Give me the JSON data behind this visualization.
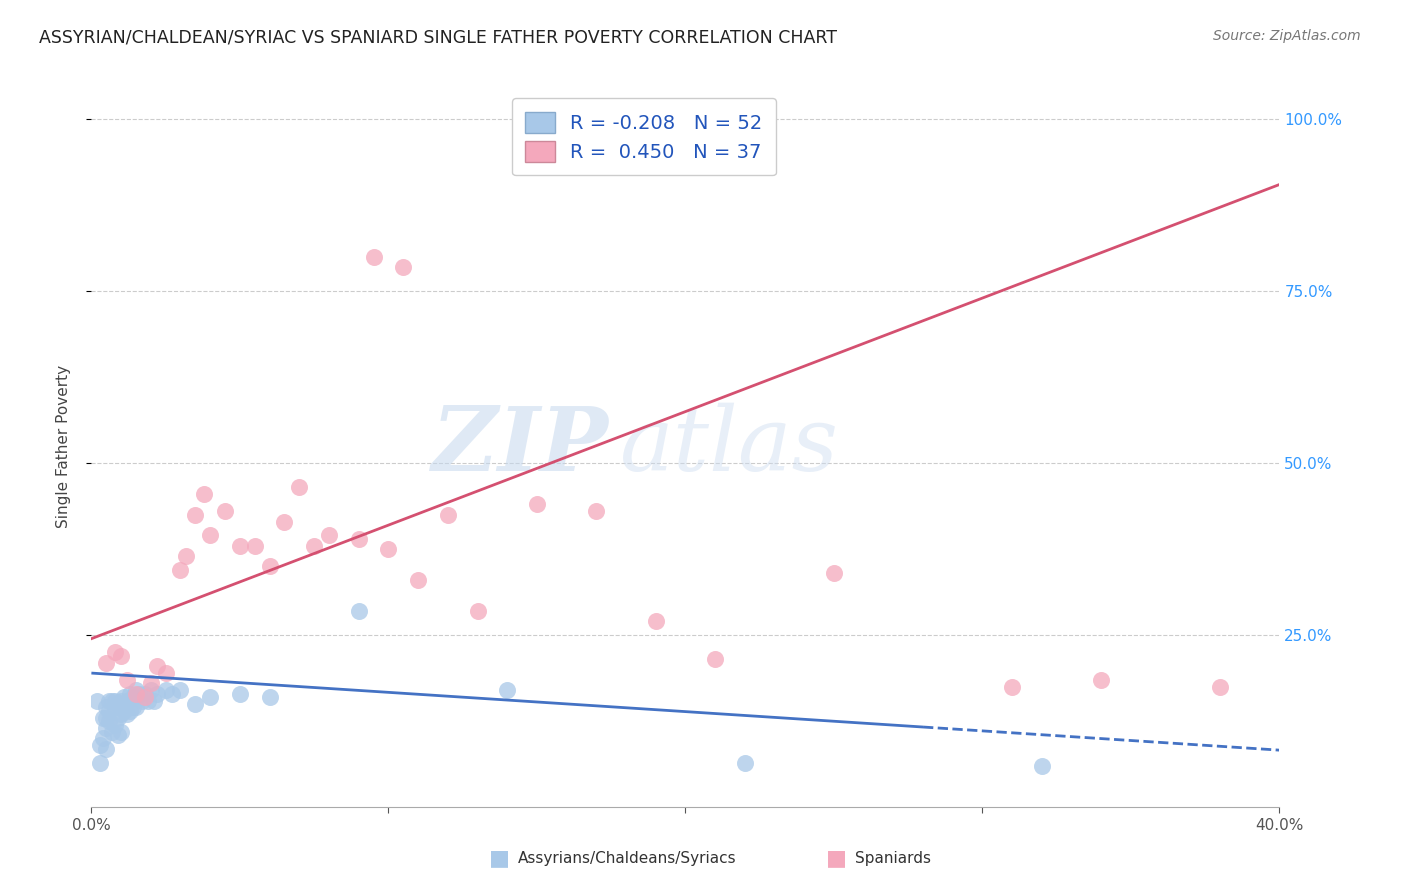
{
  "title": "ASSYRIAN/CHALDEAN/SYRIAC VS SPANIARD SINGLE FATHER POVERTY CORRELATION CHART",
  "source": "Source: ZipAtlas.com",
  "ylabel": "Single Father Poverty",
  "xlim": [
    0.0,
    0.4
  ],
  "ylim": [
    0.0,
    1.05
  ],
  "blue_R": -0.208,
  "blue_N": 52,
  "pink_R": 0.45,
  "pink_N": 37,
  "blue_color": "#a8c8e8",
  "blue_line_color": "#4472c4",
  "pink_color": "#f4a8bc",
  "pink_line_color": "#d45070",
  "blue_line_solid_end": 0.28,
  "blue_line_dash_end": 0.4,
  "pink_line_intercept": 0.245,
  "pink_line_slope": 1.65,
  "blue_line_intercept": 0.195,
  "blue_line_slope": -0.28,
  "blue_x": [
    0.002,
    0.003,
    0.003,
    0.004,
    0.004,
    0.005,
    0.005,
    0.005,
    0.005,
    0.006,
    0.006,
    0.006,
    0.007,
    0.007,
    0.008,
    0.008,
    0.008,
    0.009,
    0.009,
    0.009,
    0.01,
    0.01,
    0.01,
    0.01,
    0.011,
    0.011,
    0.012,
    0.012,
    0.013,
    0.013,
    0.014,
    0.014,
    0.015,
    0.015,
    0.016,
    0.017,
    0.018,
    0.019,
    0.02,
    0.021,
    0.022,
    0.025,
    0.027,
    0.03,
    0.035,
    0.04,
    0.05,
    0.06,
    0.09,
    0.14,
    0.22,
    0.32
  ],
  "blue_y": [
    0.155,
    0.09,
    0.065,
    0.13,
    0.1,
    0.145,
    0.13,
    0.115,
    0.085,
    0.155,
    0.14,
    0.125,
    0.155,
    0.11,
    0.155,
    0.145,
    0.12,
    0.15,
    0.13,
    0.105,
    0.155,
    0.145,
    0.135,
    0.11,
    0.16,
    0.14,
    0.155,
    0.135,
    0.165,
    0.14,
    0.16,
    0.145,
    0.17,
    0.145,
    0.165,
    0.155,
    0.165,
    0.155,
    0.17,
    0.155,
    0.165,
    0.17,
    0.165,
    0.17,
    0.15,
    0.16,
    0.165,
    0.16,
    0.285,
    0.17,
    0.065,
    0.06
  ],
  "pink_x": [
    0.005,
    0.008,
    0.01,
    0.012,
    0.015,
    0.018,
    0.02,
    0.022,
    0.025,
    0.03,
    0.032,
    0.035,
    0.038,
    0.04,
    0.045,
    0.05,
    0.055,
    0.06,
    0.065,
    0.07,
    0.075,
    0.08,
    0.09,
    0.1,
    0.11,
    0.12,
    0.13,
    0.15,
    0.17,
    0.19,
    0.21,
    0.25,
    0.31,
    0.34,
    0.38,
    0.095,
    0.105
  ],
  "pink_y": [
    0.21,
    0.225,
    0.22,
    0.185,
    0.165,
    0.16,
    0.18,
    0.205,
    0.195,
    0.345,
    0.365,
    0.425,
    0.455,
    0.395,
    0.43,
    0.38,
    0.38,
    0.35,
    0.415,
    0.465,
    0.38,
    0.395,
    0.39,
    0.375,
    0.33,
    0.425,
    0.285,
    0.44,
    0.43,
    0.27,
    0.215,
    0.34,
    0.175,
    0.185,
    0.175,
    0.8,
    0.785
  ]
}
